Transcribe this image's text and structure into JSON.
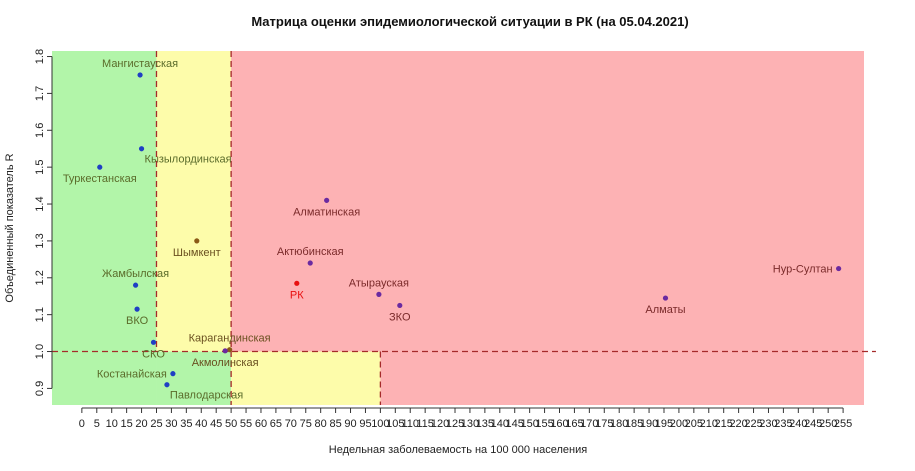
{
  "chart_data": {
    "type": "scatter",
    "title": "Матрица оценки эпидемиологической ситуации в РК (на 05.04.2021)",
    "xlabel": "Недельная заболеваемость на 100 000 населения",
    "ylabel": "Объединенный показатель R",
    "xlim": [
      -10,
      262
    ],
    "ylim": [
      0.855,
      1.815
    ],
    "x_ticks": [
      0,
      5,
      10,
      15,
      20,
      25,
      30,
      35,
      40,
      45,
      50,
      55,
      60,
      65,
      70,
      75,
      80,
      85,
      90,
      95,
      100,
      105,
      110,
      115,
      120,
      125,
      130,
      135,
      140,
      145,
      150,
      155,
      160,
      165,
      170,
      175,
      180,
      185,
      190,
      195,
      200,
      205,
      210,
      215,
      220,
      225,
      230,
      235,
      240,
      245,
      250,
      255
    ],
    "y_ticks": [
      0.9,
      1.0,
      1.1,
      1.2,
      1.3,
      1.4,
      1.5,
      1.6,
      1.7,
      1.8
    ],
    "zones": [
      {
        "color": "#b2f5a9",
        "x": [
          -10,
          25
        ],
        "y": [
          0.855,
          1.815
        ]
      },
      {
        "color": "#fdfcaa",
        "x": [
          25,
          50
        ],
        "y": [
          1.0,
          1.815
        ]
      },
      {
        "color": "#b2f5a9",
        "x": [
          25,
          50
        ],
        "y": [
          0.855,
          1.0
        ]
      },
      {
        "color": "#fdb2b4",
        "x": [
          50,
          262
        ],
        "y": [
          1.0,
          1.815
        ]
      },
      {
        "color": "#fdfcaa",
        "x": [
          50,
          100
        ],
        "y": [
          0.855,
          1.0
        ]
      },
      {
        "color": "#fdb2b4",
        "x": [
          100,
          262
        ],
        "y": [
          0.855,
          1.0
        ]
      }
    ],
    "reference_lines": [
      {
        "orientation": "vertical",
        "x": 25,
        "y_range": [
          1.0,
          1.815
        ],
        "color": "#a52a2a",
        "dashed": true
      },
      {
        "orientation": "vertical",
        "x": 50,
        "y_range": [
          0.855,
          1.815
        ],
        "color": "#a52a2a",
        "dashed": true
      },
      {
        "orientation": "vertical",
        "x": 100,
        "y_range": [
          0.855,
          1.0
        ],
        "color": "#a52a2a",
        "dashed": true
      },
      {
        "orientation": "horizontal",
        "y": 1.0,
        "x_range": [
          -10,
          266
        ],
        "color": "#a52a2a",
        "dashed": true
      }
    ],
    "points": [
      {
        "label": "Мангистауская",
        "x": 19.5,
        "y": 1.75,
        "color": "#1f3fc4",
        "label_color": "#5a6b2a",
        "label_pos": "above"
      },
      {
        "label": "Кызылординская",
        "x": 20,
        "y": 1.55,
        "color": "#1f3fc4",
        "label_color": "#5a6b2a",
        "label_pos": "right"
      },
      {
        "label": "Туркестанская",
        "x": 6,
        "y": 1.5,
        "color": "#1f3fc4",
        "label_color": "#5a6b2a",
        "label_pos": "below"
      },
      {
        "label": "Жамбылская",
        "x": 18,
        "y": 1.18,
        "color": "#1f3fc4",
        "label_color": "#5a6b2a",
        "label_pos": "above"
      },
      {
        "label": "ВКО",
        "x": 18.5,
        "y": 1.115,
        "color": "#1f3fc4",
        "label_color": "#5a6b2a",
        "label_pos": "below"
      },
      {
        "label": "СКО",
        "x": 24,
        "y": 1.025,
        "color": "#1f3fc4",
        "label_color": "#5a6b2a",
        "label_pos": "below"
      },
      {
        "label": "Костанайская",
        "x": 30.5,
        "y": 0.94,
        "color": "#1f3fc4",
        "label_color": "#5a6b2a",
        "label_pos": "left"
      },
      {
        "label": "Павлодарская",
        "x": 28.5,
        "y": 0.91,
        "color": "#1f3fc4",
        "label_color": "#5a6b2a",
        "label_pos": "right"
      },
      {
        "label": "Шымкент",
        "x": 38.5,
        "y": 1.3,
        "color": "#8b5a16",
        "label_color": "#6a5020",
        "label_pos": "below"
      },
      {
        "label": "Карагандинская",
        "x": 49.5,
        "y": 1.005,
        "color": "#8b5a16",
        "label_color": "#6a5020",
        "label_pos": "above"
      },
      {
        "label": "Акмолинская",
        "x": 48,
        "y": 1.002,
        "color": "#6a2aa0",
        "label_color": "#6a5020",
        "label_pos": "below"
      },
      {
        "label": "Алматинская",
        "x": 82,
        "y": 1.41,
        "color": "#6a2aa0",
        "label_color": "#7a2a2a",
        "label_pos": "below"
      },
      {
        "label": "Актюбинская",
        "x": 76.5,
        "y": 1.24,
        "color": "#6a2aa0",
        "label_color": "#7a2a2a",
        "label_pos": "above"
      },
      {
        "label": "РК",
        "x": 72,
        "y": 1.185,
        "color": "#e81010",
        "label_color": "#e81010",
        "label_pos": "below"
      },
      {
        "label": "Атырауская",
        "x": 99.5,
        "y": 1.155,
        "color": "#6a2aa0",
        "label_color": "#7a2a2a",
        "label_pos": "above"
      },
      {
        "label": "ЗКО",
        "x": 106.5,
        "y": 1.125,
        "color": "#6a2aa0",
        "label_color": "#7a2a2a",
        "label_pos": "below"
      },
      {
        "label": "Алматы",
        "x": 195.5,
        "y": 1.145,
        "color": "#6a2aa0",
        "label_color": "#7a2a2a",
        "label_pos": "below"
      },
      {
        "label": "Нур-Султан",
        "x": 253.5,
        "y": 1.225,
        "color": "#6a2aa0",
        "label_color": "#7a2a2a",
        "label_pos": "left"
      }
    ],
    "grid": false,
    "legend": "none"
  }
}
